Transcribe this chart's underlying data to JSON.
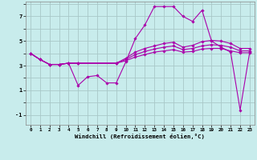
{
  "xlabel": "Windchill (Refroidissement éolien,°C)",
  "bg_color": "#c8ecec",
  "grid_color": "#a8c8c8",
  "line_color": "#aa00aa",
  "x_ticks": [
    0,
    1,
    2,
    3,
    4,
    5,
    6,
    7,
    8,
    9,
    10,
    11,
    12,
    13,
    14,
    15,
    16,
    17,
    18,
    19,
    20,
    21,
    22,
    23
  ],
  "y_ticks": [
    -1,
    0,
    1,
    2,
    3,
    4,
    5,
    6,
    7,
    8
  ],
  "y_labels": [
    "-1",
    "",
    "1",
    "",
    "3",
    "",
    "5",
    "",
    "7",
    ""
  ],
  "ylim": [
    -1.8,
    8.2
  ],
  "xlim": [
    -0.5,
    23.5
  ],
  "lines": [
    {
      "x": [
        0,
        1,
        2,
        3,
        4,
        5,
        6,
        7,
        8,
        9,
        10,
        11,
        12,
        13,
        14,
        15,
        16,
        17,
        18,
        19,
        20,
        21,
        22,
        23
      ],
      "y": [
        4.0,
        3.5,
        3.1,
        3.1,
        3.2,
        1.4,
        2.1,
        2.2,
        1.6,
        1.6,
        3.3,
        5.2,
        6.3,
        7.8,
        7.8,
        7.8,
        7.0,
        6.6,
        7.5,
        5.0,
        4.5,
        4.1,
        -0.6,
        4.1
      ]
    },
    {
      "x": [
        0,
        1,
        2,
        3,
        4,
        5,
        9,
        10,
        11,
        12,
        13,
        14,
        15,
        16,
        17,
        18,
        19,
        20,
        21,
        22,
        23
      ],
      "y": [
        4.0,
        3.5,
        3.1,
        3.1,
        3.2,
        3.2,
        3.2,
        3.4,
        3.7,
        3.9,
        4.1,
        4.2,
        4.3,
        4.1,
        4.15,
        4.35,
        4.4,
        4.4,
        4.2,
        4.05,
        4.05
      ]
    },
    {
      "x": [
        0,
        1,
        2,
        3,
        4,
        5,
        9,
        10,
        11,
        12,
        13,
        14,
        15,
        16,
        17,
        18,
        19,
        20,
        21,
        22,
        23
      ],
      "y": [
        4.0,
        3.5,
        3.1,
        3.1,
        3.2,
        3.2,
        3.2,
        3.5,
        3.9,
        4.15,
        4.35,
        4.5,
        4.6,
        4.3,
        4.4,
        4.6,
        4.7,
        4.65,
        4.5,
        4.2,
        4.2
      ]
    },
    {
      "x": [
        0,
        1,
        2,
        3,
        4,
        5,
        9,
        10,
        11,
        12,
        13,
        14,
        15,
        16,
        17,
        18,
        19,
        20,
        21,
        22,
        23
      ],
      "y": [
        4.0,
        3.5,
        3.1,
        3.1,
        3.2,
        3.2,
        3.2,
        3.6,
        4.1,
        4.4,
        4.6,
        4.8,
        4.9,
        4.5,
        4.65,
        4.95,
        5.05,
        5.0,
        4.8,
        4.4,
        4.4
      ]
    }
  ]
}
